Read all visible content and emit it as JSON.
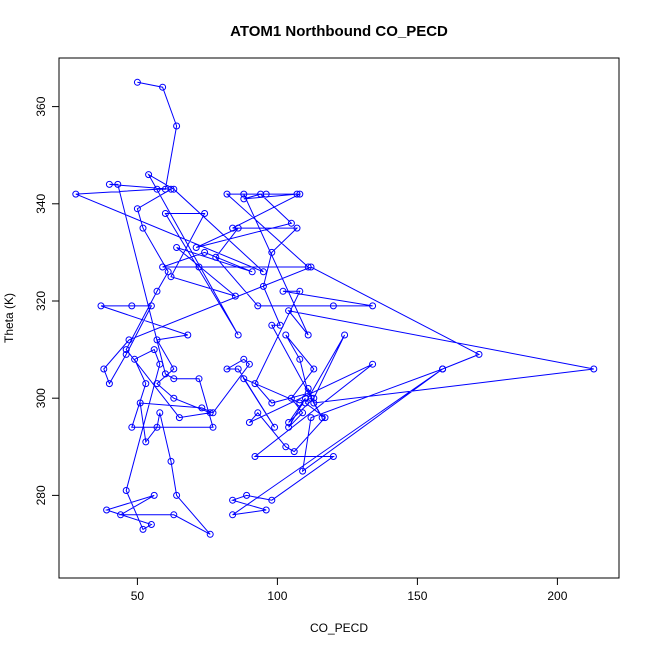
{
  "chart_data": {
    "type": "line",
    "title": "ATOM1 Northbound CO_PECD",
    "xlabel": "CO_PECD",
    "ylabel": "Theta (K)",
    "xlim": [
      22,
      222
    ],
    "ylim": [
      263,
      370
    ],
    "xticks": [
      50,
      100,
      150,
      200
    ],
    "yticks": [
      280,
      300,
      320,
      340,
      360
    ],
    "grid": false,
    "legend": "none",
    "color": "#0000ff",
    "series": [
      {
        "points": [
          [
            50,
            365
          ],
          [
            59,
            364
          ],
          [
            64,
            356
          ],
          [
            60,
            343
          ],
          [
            57,
            343
          ],
          [
            28,
            342
          ],
          [
            95,
            326
          ],
          [
            63,
            343
          ],
          [
            54,
            346
          ],
          [
            86,
            313
          ],
          [
            60,
            338
          ],
          [
            74,
            338
          ],
          [
            62,
            325
          ],
          [
            85,
            321
          ],
          [
            64,
            331
          ],
          [
            91,
            326
          ],
          [
            74,
            330
          ],
          [
            59,
            327
          ],
          [
            72,
            327
          ],
          [
            111,
            327
          ],
          [
            82,
            342
          ],
          [
            107,
            342
          ],
          [
            88,
            341
          ],
          [
            94,
            342
          ],
          [
            105,
            336
          ],
          [
            71,
            331
          ],
          [
            86,
            335
          ],
          [
            78,
            329
          ],
          [
            93,
            319
          ],
          [
            120,
            319
          ],
          [
            134,
            319
          ],
          [
            102,
            322
          ],
          [
            108,
            322
          ],
          [
            92,
            303
          ],
          [
            98,
            299
          ],
          [
            111,
            301
          ],
          [
            108,
            308
          ],
          [
            103,
            313
          ],
          [
            113,
            306
          ],
          [
            105,
            300
          ],
          [
            109,
            297
          ],
          [
            104,
            294
          ],
          [
            110,
            300
          ],
          [
            104,
            295
          ],
          [
            113,
            300
          ],
          [
            124,
            313
          ],
          [
            110,
            299
          ],
          [
            117,
            296
          ],
          [
            106,
            289
          ],
          [
            103,
            290
          ],
          [
            93,
            297
          ],
          [
            90,
            295
          ],
          [
            134,
            307
          ],
          [
            92,
            288
          ],
          [
            120,
            288
          ],
          [
            98,
            279
          ],
          [
            89,
            280
          ],
          [
            84,
            279
          ],
          [
            96,
            277
          ],
          [
            84,
            276
          ],
          [
            159,
            306
          ],
          [
            109,
            285
          ],
          [
            112,
            296
          ],
          [
            159,
            306
          ],
          [
            172,
            309
          ],
          [
            112,
            327
          ],
          [
            47,
            312
          ],
          [
            38,
            306
          ],
          [
            40,
            303
          ],
          [
            46,
            309
          ],
          [
            55,
            319
          ],
          [
            48,
            319
          ],
          [
            37,
            319
          ],
          [
            68,
            313
          ],
          [
            57,
            312
          ],
          [
            63,
            306
          ],
          [
            57,
            303
          ],
          [
            63,
            300
          ],
          [
            76,
            297
          ],
          [
            65,
            296
          ],
          [
            46,
            310
          ],
          [
            57,
            322
          ],
          [
            61,
            326
          ],
          [
            52,
            335
          ],
          [
            50,
            339
          ],
          [
            62,
            343
          ],
          [
            40,
            344
          ],
          [
            43,
            344
          ],
          [
            60,
            305
          ],
          [
            63,
            304
          ],
          [
            72,
            304
          ],
          [
            77,
            294
          ],
          [
            48,
            294
          ],
          [
            53,
            303
          ],
          [
            49,
            308
          ],
          [
            56,
            310
          ],
          [
            58,
            307
          ],
          [
            46,
            281
          ],
          [
            52,
            273
          ],
          [
            55,
            274
          ],
          [
            39,
            277
          ],
          [
            56,
            280
          ],
          [
            44,
            276
          ],
          [
            63,
            276
          ],
          [
            76,
            272
          ],
          [
            64,
            280
          ],
          [
            62,
            287
          ],
          [
            58,
            297
          ],
          [
            57,
            294
          ],
          [
            53,
            291
          ],
          [
            51,
            299
          ],
          [
            73,
            298
          ],
          [
            77,
            297
          ],
          [
            90,
            307
          ],
          [
            88,
            308
          ],
          [
            82,
            306
          ],
          [
            86,
            306
          ],
          [
            99,
            294
          ],
          [
            88,
            304
          ],
          [
            108,
            299
          ],
          [
            112,
            300
          ],
          [
            116,
            296
          ],
          [
            98,
            315
          ],
          [
            101,
            315
          ],
          [
            95,
            323
          ],
          [
            98,
            330
          ],
          [
            107,
            335
          ],
          [
            84,
            335
          ],
          [
            108,
            342
          ],
          [
            96,
            342
          ],
          [
            88,
            342
          ],
          [
            111,
            313
          ],
          [
            104,
            318
          ],
          [
            213,
            306
          ],
          [
            113,
            299
          ],
          [
            111,
            302
          ]
        ]
      }
    ]
  }
}
